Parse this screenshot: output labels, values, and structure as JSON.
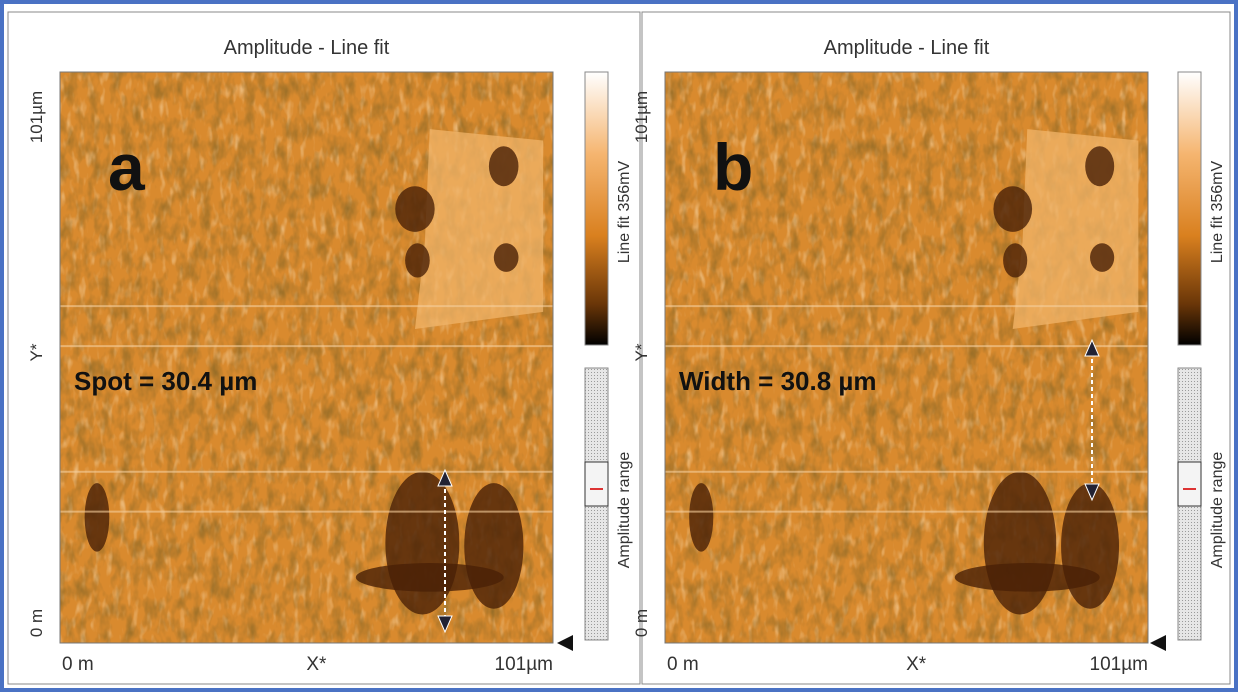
{
  "panels": [
    {
      "title": "Amplitude - Line fit",
      "label": "a",
      "y_labels": [
        "101µm",
        "Y*",
        "0 m"
      ],
      "x_labels": [
        "0 m",
        "X*",
        "101µm"
      ],
      "annotation": "Spot = 30.4 µm",
      "colorbar_label": "Line fit 356mV",
      "range_label": "Amplitude range"
    },
    {
      "title": "Amplitude - Line fit",
      "label": "b",
      "y_labels": [
        "101µm",
        "Y*",
        "0 m"
      ],
      "x_labels": [
        "0 m",
        "X*",
        "101µm"
      ],
      "annotation": "Width = 30.8 µm",
      "colorbar_label": "Line fit 356mV",
      "range_label": "Amplitude range"
    }
  ]
}
